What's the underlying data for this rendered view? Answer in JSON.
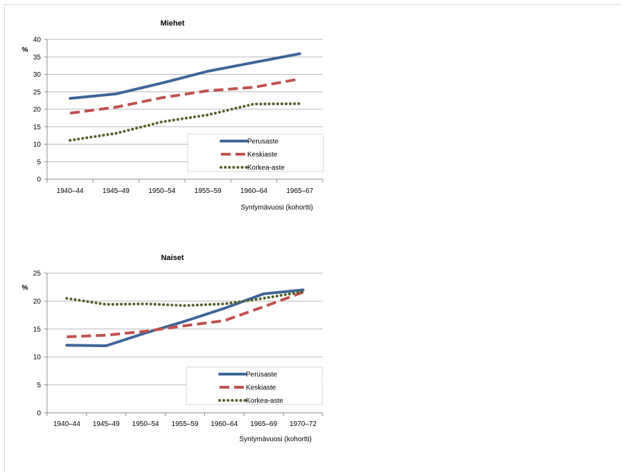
{
  "chart_data": [
    {
      "type": "line",
      "title": "Miehet",
      "ylabel": "%",
      "xlabel": "Syntymävuosi (kohortti)",
      "ylim": [
        0,
        40
      ],
      "yticks": [
        0,
        5,
        10,
        15,
        20,
        25,
        30,
        35,
        40
      ],
      "categories": [
        "1940–44",
        "1945–49",
        "1950–54",
        "1955–59",
        "1960–64",
        "1965–67"
      ],
      "grid": true,
      "legend_position": "bottom-right",
      "series": [
        {
          "name": "Perusaste",
          "color": "#3e6599",
          "style": "solid",
          "values": [
            23.1,
            24.4,
            27.5,
            30.9,
            33.4,
            35.9
          ]
        },
        {
          "name": "Keskiaste",
          "color": "#c0504d",
          "style": "dashed",
          "values": [
            18.9,
            20.6,
            23.3,
            25.3,
            26.3,
            28.7
          ]
        },
        {
          "name": "Korkea-aste",
          "color": "#4f6228",
          "style": "dotted",
          "values": [
            11.1,
            13.1,
            16.4,
            18.4,
            21.5,
            21.6
          ]
        }
      ]
    },
    {
      "type": "line",
      "title": "Naiset",
      "ylabel": "%",
      "xlabel": "Syntymävuosi (kohortti)",
      "ylim": [
        0,
        25
      ],
      "yticks": [
        0,
        5,
        10,
        15,
        20,
        25
      ],
      "categories": [
        "1940–44",
        "1945–49",
        "1950–54",
        "1955–59",
        "1960–64",
        "1965–69",
        "1970–72"
      ],
      "grid": true,
      "legend_position": "bottom-right",
      "series": [
        {
          "name": "Perusaste",
          "color": "#3e6599",
          "style": "solid",
          "values": [
            12.1,
            12.0,
            14.3,
            16.4,
            18.7,
            21.3,
            22.0
          ]
        },
        {
          "name": "Keskiaste",
          "color": "#c0504d",
          "style": "dashed",
          "values": [
            13.6,
            13.9,
            14.6,
            15.6,
            16.5,
            19.0,
            21.6
          ]
        },
        {
          "name": "Korkea-aste",
          "color": "#4f6228",
          "style": "dotted",
          "values": [
            20.5,
            19.4,
            19.5,
            19.2,
            19.5,
            20.5,
            21.7
          ]
        }
      ]
    }
  ]
}
